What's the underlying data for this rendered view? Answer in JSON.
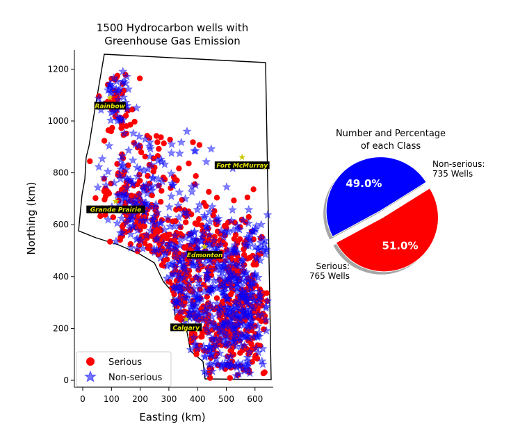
{
  "chart_data": [
    {
      "type": "scatter",
      "title": "1500 Hydrocarbon wells with\nGreenhouse Gas Emission",
      "xlabel": "Easting (km)",
      "ylabel": "Northing (km)",
      "xlim": [
        -25,
        660
      ],
      "ylim": [
        -25,
        1270
      ],
      "xticks": [
        0,
        100,
        200,
        300,
        400,
        500,
        600
      ],
      "yticks": [
        0,
        200,
        400,
        600,
        800,
        1000,
        1200
      ],
      "grid": false,
      "legend_position": "lower-left",
      "series": [
        {
          "name": "Serious",
          "marker": "circle",
          "color": "#ff0000",
          "count": 765
        },
        {
          "name": "Non-serious",
          "marker": "star",
          "color": "#0000ff",
          "count": 735
        }
      ],
      "cities": [
        {
          "name": "Rainbow",
          "x": 95,
          "y": 1090
        },
        {
          "name": "Fort McMurray",
          "x": 555,
          "y": 860
        },
        {
          "name": "Grande Prairie",
          "x": 115,
          "y": 690
        },
        {
          "name": "Edmonton",
          "x": 425,
          "y": 515
        },
        {
          "name": "Calgary",
          "x": 360,
          "y": 235
        }
      ]
    },
    {
      "type": "pie",
      "title": "Number and Percentage\nof each Class",
      "slices": [
        {
          "name": "Serious",
          "label": "Serious:\n765 Wells",
          "value": 765,
          "percent": "51.0%",
          "color": "#ff0000"
        },
        {
          "name": "Non-serious",
          "label": "Non-serious:\n735 Wells",
          "value": 735,
          "percent": "49.0%",
          "color": "#0000ff"
        }
      ]
    }
  ]
}
